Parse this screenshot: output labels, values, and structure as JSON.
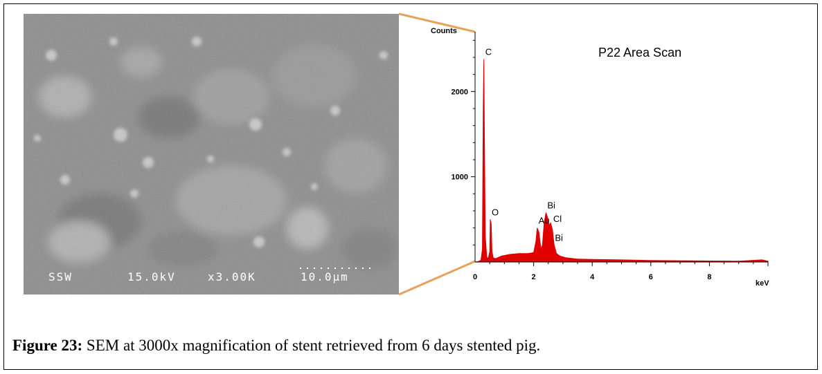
{
  "sem_image": {
    "databar": {
      "label": "SSW",
      "voltage": "15.0kV",
      "magnification": "x3.00K",
      "scale": "10.0µm"
    }
  },
  "colors": {
    "connector": "#E8A159",
    "spectrum": "#E00000"
  },
  "caption": {
    "label": "Figure 23:",
    "text": " SEM at 3000x magnification of stent retrieved from 6 days stented pig."
  },
  "chart_data": {
    "type": "line",
    "title": "P22 Area Scan",
    "xlabel": "keV",
    "ylabel": "Counts",
    "xlim": [
      0,
      10
    ],
    "ylim": [
      0,
      2700
    ],
    "x_ticks": [
      0,
      2,
      4,
      6,
      8
    ],
    "y_ticks": [
      1000,
      2000
    ],
    "grid": false,
    "series": [
      {
        "x": [
          0.0,
          0.1,
          0.2,
          0.25,
          0.28,
          0.3,
          0.32,
          0.35,
          0.4,
          0.45,
          0.5,
          0.52,
          0.55,
          0.58,
          0.62,
          0.7,
          0.9,
          1.2,
          1.5,
          1.8,
          2.0,
          2.08,
          2.12,
          2.18,
          2.25,
          2.3,
          2.36,
          2.42,
          2.48,
          2.52,
          2.58,
          2.64,
          2.7,
          2.78,
          2.9,
          3.1,
          3.5,
          4.0,
          5.0,
          6.0,
          7.0,
          8.0,
          9.0,
          9.8,
          10.0
        ],
        "y": [
          0,
          5,
          20,
          150,
          1800,
          2380,
          1500,
          300,
          60,
          40,
          120,
          500,
          450,
          120,
          50,
          40,
          70,
          90,
          100,
          100,
          110,
          250,
          400,
          350,
          150,
          200,
          460,
          580,
          520,
          430,
          460,
          380,
          200,
          100,
          70,
          50,
          35,
          30,
          25,
          18,
          15,
          12,
          10,
          25,
          10
        ]
      }
    ],
    "peak_labels": [
      {
        "text": "C",
        "x": 0.3,
        "y": 2380
      },
      {
        "text": "O",
        "x": 0.52,
        "y": 500
      },
      {
        "text": "Au",
        "x": 2.12,
        "y": 400
      },
      {
        "text": "Bi",
        "x": 2.42,
        "y": 580
      },
      {
        "text": "Cl",
        "x": 2.62,
        "y": 420
      },
      {
        "text": "Bi",
        "x": 2.68,
        "y": 200
      }
    ]
  }
}
